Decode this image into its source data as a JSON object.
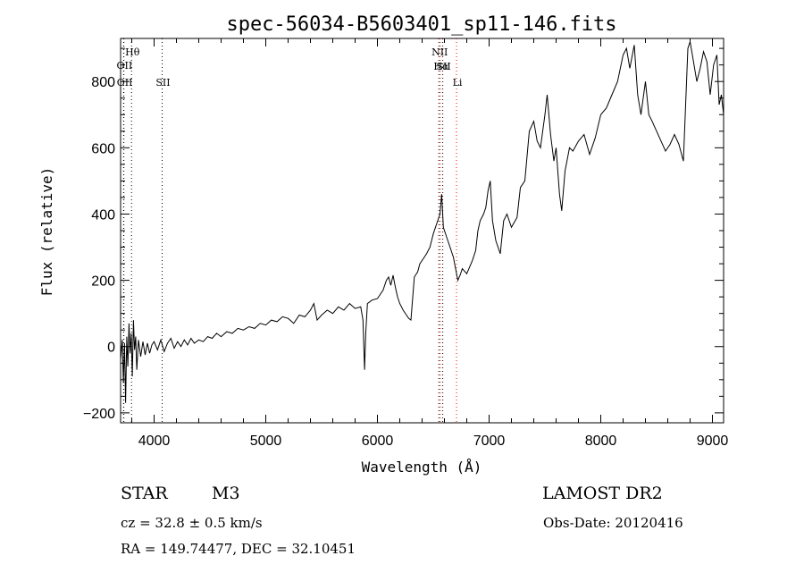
{
  "chart_data": {
    "type": "line",
    "title": "spec-56034-B5603401_sp11-146.fits",
    "xlabel": "Wavelength (Å)",
    "ylabel": "Flux (relative)",
    "xlim": [
      3700,
      9100
    ],
    "ylim": [
      -230,
      930
    ],
    "x_ticks": [
      4000,
      5000,
      6000,
      7000,
      8000,
      9000
    ],
    "y_ticks": [
      -200,
      0,
      200,
      400,
      600,
      800
    ],
    "grid": false,
    "line_color": "#000000",
    "series": [
      {
        "points": [
          [
            3700,
            -40
          ],
          [
            3715,
            20
          ],
          [
            3725,
            -110
          ],
          [
            3735,
            10
          ],
          [
            3745,
            -170
          ],
          [
            3755,
            30
          ],
          [
            3765,
            -60
          ],
          [
            3775,
            70
          ],
          [
            3785,
            -20
          ],
          [
            3795,
            40
          ],
          [
            3805,
            -90
          ],
          [
            3815,
            80
          ],
          [
            3825,
            -10
          ],
          [
            3835,
            30
          ],
          [
            3845,
            -70
          ],
          [
            3860,
            20
          ],
          [
            3880,
            -30
          ],
          [
            3900,
            15
          ],
          [
            3920,
            -25
          ],
          [
            3940,
            10
          ],
          [
            3960,
            -20
          ],
          [
            3980,
            5
          ],
          [
            4000,
            15
          ],
          [
            4030,
            -10
          ],
          [
            4060,
            20
          ],
          [
            4090,
            -15
          ],
          [
            4120,
            10
          ],
          [
            4150,
            25
          ],
          [
            4180,
            -5
          ],
          [
            4210,
            15
          ],
          [
            4240,
            0
          ],
          [
            4270,
            20
          ],
          [
            4300,
            5
          ],
          [
            4330,
            25
          ],
          [
            4360,
            10
          ],
          [
            4400,
            20
          ],
          [
            4440,
            15
          ],
          [
            4480,
            30
          ],
          [
            4520,
            25
          ],
          [
            4560,
            40
          ],
          [
            4600,
            30
          ],
          [
            4650,
            45
          ],
          [
            4700,
            40
          ],
          [
            4750,
            55
          ],
          [
            4800,
            50
          ],
          [
            4850,
            60
          ],
          [
            4900,
            55
          ],
          [
            4950,
            70
          ],
          [
            5000,
            65
          ],
          [
            5050,
            80
          ],
          [
            5100,
            75
          ],
          [
            5150,
            90
          ],
          [
            5200,
            85
          ],
          [
            5250,
            70
          ],
          [
            5300,
            95
          ],
          [
            5350,
            90
          ],
          [
            5400,
            110
          ],
          [
            5430,
            130
          ],
          [
            5460,
            80
          ],
          [
            5500,
            95
          ],
          [
            5550,
            110
          ],
          [
            5600,
            100
          ],
          [
            5650,
            120
          ],
          [
            5700,
            110
          ],
          [
            5750,
            130
          ],
          [
            5800,
            115
          ],
          [
            5850,
            120
          ],
          [
            5870,
            80
          ],
          [
            5885,
            -70
          ],
          [
            5895,
            40
          ],
          [
            5910,
            130
          ],
          [
            5950,
            140
          ],
          [
            6000,
            145
          ],
          [
            6050,
            170
          ],
          [
            6080,
            200
          ],
          [
            6100,
            210
          ],
          [
            6120,
            185
          ],
          [
            6140,
            215
          ],
          [
            6160,
            180
          ],
          [
            6180,
            150
          ],
          [
            6200,
            130
          ],
          [
            6230,
            110
          ],
          [
            6260,
            95
          ],
          [
            6280,
            85
          ],
          [
            6300,
            80
          ],
          [
            6330,
            210
          ],
          [
            6360,
            225
          ],
          [
            6380,
            250
          ],
          [
            6410,
            265
          ],
          [
            6440,
            280
          ],
          [
            6470,
            300
          ],
          [
            6500,
            340
          ],
          [
            6530,
            370
          ],
          [
            6560,
            400
          ],
          [
            6575,
            460
          ],
          [
            6590,
            360
          ],
          [
            6620,
            330
          ],
          [
            6650,
            300
          ],
          [
            6680,
            270
          ],
          [
            6700,
            235
          ],
          [
            6720,
            200
          ],
          [
            6740,
            215
          ],
          [
            6760,
            235
          ],
          [
            6800,
            220
          ],
          [
            6850,
            260
          ],
          [
            6880,
            290
          ],
          [
            6900,
            350
          ],
          [
            6920,
            380
          ],
          [
            6950,
            400
          ],
          [
            6970,
            420
          ],
          [
            6990,
            470
          ],
          [
            7010,
            500
          ],
          [
            7030,
            380
          ],
          [
            7060,
            320
          ],
          [
            7080,
            300
          ],
          [
            7100,
            280
          ],
          [
            7130,
            380
          ],
          [
            7160,
            400
          ],
          [
            7200,
            360
          ],
          [
            7250,
            390
          ],
          [
            7280,
            480
          ],
          [
            7320,
            500
          ],
          [
            7360,
            650
          ],
          [
            7400,
            680
          ],
          [
            7430,
            620
          ],
          [
            7460,
            600
          ],
          [
            7500,
            700
          ],
          [
            7520,
            760
          ],
          [
            7550,
            640
          ],
          [
            7580,
            560
          ],
          [
            7600,
            600
          ],
          [
            7630,
            460
          ],
          [
            7650,
            410
          ],
          [
            7680,
            530
          ],
          [
            7720,
            600
          ],
          [
            7750,
            590
          ],
          [
            7800,
            620
          ],
          [
            7850,
            640
          ],
          [
            7900,
            580
          ],
          [
            7950,
            630
          ],
          [
            8000,
            700
          ],
          [
            8050,
            720
          ],
          [
            8100,
            760
          ],
          [
            8150,
            800
          ],
          [
            8200,
            880
          ],
          [
            8230,
            900
          ],
          [
            8260,
            840
          ],
          [
            8300,
            910
          ],
          [
            8330,
            760
          ],
          [
            8360,
            700
          ],
          [
            8400,
            800
          ],
          [
            8430,
            700
          ],
          [
            8460,
            680
          ],
          [
            8500,
            650
          ],
          [
            8540,
            620
          ],
          [
            8580,
            590
          ],
          [
            8620,
            610
          ],
          [
            8660,
            640
          ],
          [
            8700,
            610
          ],
          [
            8740,
            560
          ],
          [
            8780,
            900
          ],
          [
            8800,
            920
          ],
          [
            8830,
            860
          ],
          [
            8860,
            800
          ],
          [
            8890,
            840
          ],
          [
            8920,
            890
          ],
          [
            8950,
            860
          ],
          [
            8980,
            760
          ],
          [
            9010,
            850
          ],
          [
            9040,
            880
          ],
          [
            9060,
            730
          ],
          [
            9080,
            760
          ],
          [
            9100,
            700
          ]
        ]
      }
    ],
    "annotations": [
      {
        "label": "Hθ",
        "x": 3798,
        "color": "#000000"
      },
      {
        "label": "OII",
        "x": 3727,
        "color": "#000000"
      },
      {
        "label": "OII",
        "x": 3729,
        "color": "#000000"
      },
      {
        "label": "SII",
        "x": 4072,
        "color": "#000000"
      },
      {
        "label": "NII",
        "x": 6550,
        "color": "#000000"
      },
      {
        "label": "Hα",
        "x": 6563,
        "color": "#ff0000"
      },
      {
        "label": "SII",
        "x": 6585,
        "color": "#000000"
      },
      {
        "label": "Li",
        "x": 6708,
        "color": "#ff0000"
      }
    ]
  },
  "info": {
    "object_type": "STAR",
    "subclass": "M3",
    "survey": "LAMOST DR2",
    "redshift": "cz = 32.8 ± 0.5 km/s",
    "obs_date": "Obs-Date: 20120416",
    "coords": "RA = 149.74477, DEC =  32.10451"
  }
}
